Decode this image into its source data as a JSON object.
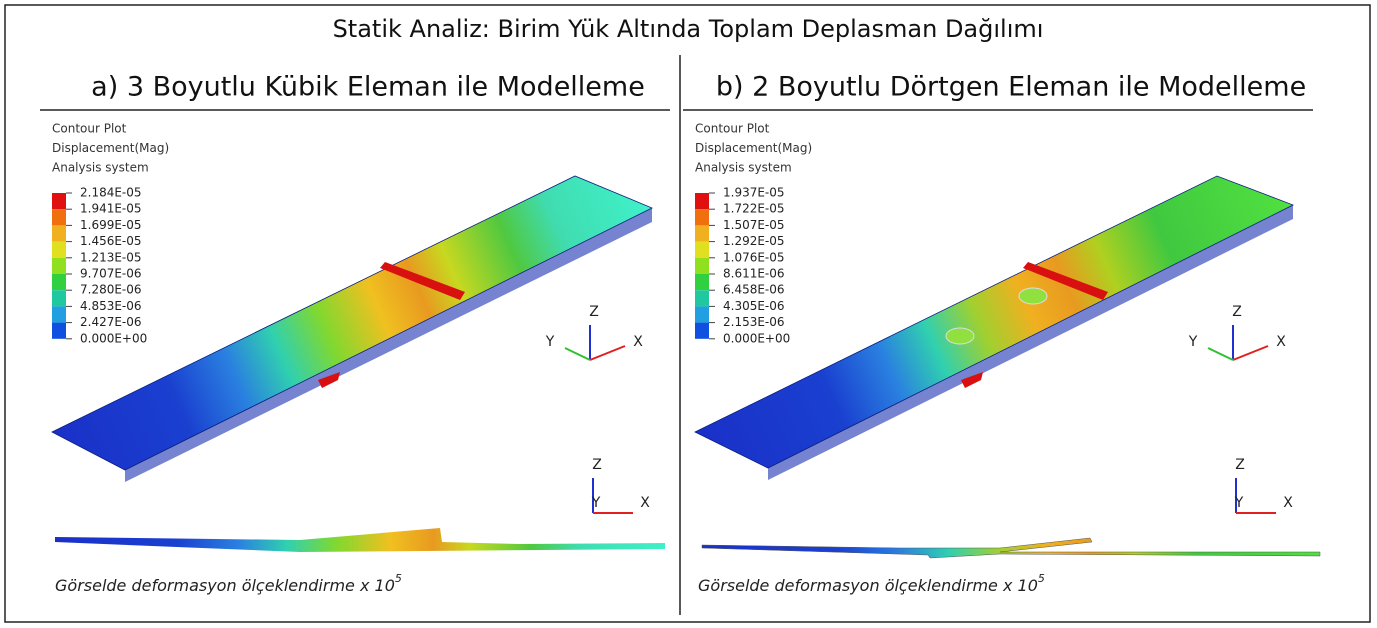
{
  "title": "Statik Analiz: Birim Yük Altında Toplam Deplasman Dağılımı",
  "panels": [
    {
      "title": "a) 3 Boyutlu Kübik Eleman ile Modelleme",
      "legend": {
        "header": [
          "Contour Plot",
          "Displacement(Mag)",
          "Analysis system"
        ],
        "labels": [
          "2.184E-05",
          "1.941E-05",
          "1.699E-05",
          "1.456E-05",
          "1.213E-05",
          "9.707E-06",
          "7.280E-06",
          "4.853E-06",
          "2.427E-06",
          "0.000E+00"
        ]
      },
      "triads": [
        {
          "z": "Z",
          "y": "Y",
          "x": "X"
        },
        {
          "z": "Z",
          "y": "Y",
          "x": "X"
        }
      ],
      "note": {
        "text": "Görselde deformasyon ölçeklendirme x 10",
        "exponent": "5"
      }
    },
    {
      "title": "b) 2 Boyutlu Dörtgen Eleman ile Modelleme",
      "legend": {
        "header": [
          "Contour Plot",
          "Displacement(Mag)",
          "Analysis system"
        ],
        "labels": [
          "1.937E-05",
          "1.722E-05",
          "1.507E-05",
          "1.292E-05",
          "1.076E-05",
          "8.611E-06",
          "6.458E-06",
          "4.305E-06",
          "2.153E-06",
          "0.000E+00"
        ]
      },
      "triads": [
        {
          "z": "Z",
          "y": "Y",
          "x": "X"
        },
        {
          "z": "Z",
          "y": "Y",
          "x": "X"
        }
      ],
      "note": {
        "text": "Görselde deformasyon ölçeklendirme x 10",
        "exponent": "5"
      }
    }
  ]
}
